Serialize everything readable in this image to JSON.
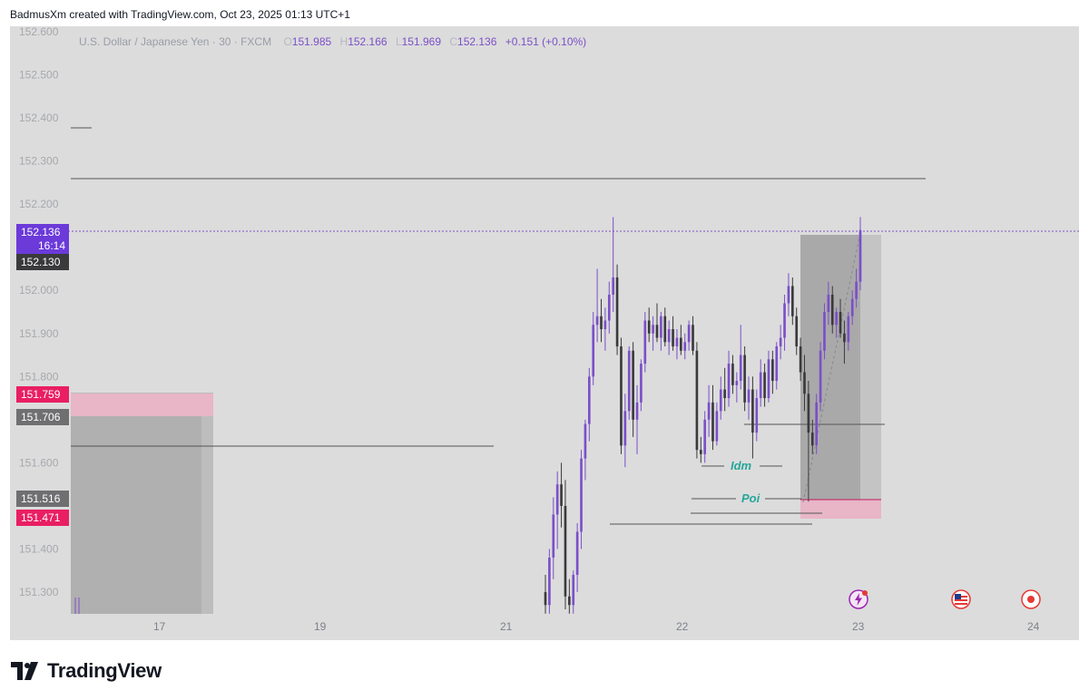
{
  "header": {
    "credit": "BadmusXm created with TradingView.com, Oct 23, 2025 01:13 UTC+1"
  },
  "legend": {
    "symbol": "U.S. Dollar / Japanese Yen · 30 · FXCM",
    "open_k": "O",
    "open_v": "151.985",
    "high_k": "H",
    "high_v": "152.166",
    "low_k": "L",
    "low_v": "151.969",
    "close_k": "C",
    "close_v": "152.136",
    "change": "+0.151 (+0.10%)"
  },
  "price_tags": {
    "last_price": "152.136",
    "countdown": "16:14",
    "tag_152130": "152.130",
    "tag_151759": "151.759",
    "tag_151706": "151.706",
    "tag_151516": "151.516",
    "tag_151471": "151.471"
  },
  "annotations": {
    "idm": "Idm",
    "poi": "Poi"
  },
  "icons": [
    "lightning-event-icon",
    "us-flag-event-icon",
    "record-event-icon"
  ],
  "colors": {
    "background": "#dcdcdc",
    "candle_bull": "#7b4fc9",
    "candle_bear": "#3a3a3c",
    "accent_purple": "#6b3ad9",
    "zone_pink": "#e8a6bd",
    "label_teal": "#26a69a"
  },
  "footer": {
    "brand": "TradingView"
  },
  "chart_data": {
    "type": "candlestick",
    "title": "U.S. Dollar / Japanese Yen · 30 · FXCM",
    "y_ticks": [
      "152.600",
      "152.500",
      "152.400",
      "152.300",
      "152.200",
      "152.000",
      "151.900",
      "151.800",
      "151.600",
      "151.400",
      "151.300"
    ],
    "ylim": [
      151.25,
      152.6
    ],
    "x_ticks": [
      "17",
      "19",
      "21",
      "22",
      "23",
      "24"
    ],
    "last_price": 152.136,
    "horizontal_levels": [
      152.26,
      151.637,
      151.455,
      151.685
    ],
    "candles": [
      [
        151.3,
        151.34,
        151.25,
        151.27
      ],
      [
        151.27,
        151.4,
        151.25,
        151.38
      ],
      [
        151.38,
        151.52,
        151.33,
        151.48
      ],
      [
        151.48,
        151.58,
        151.4,
        151.55
      ],
      [
        151.55,
        151.6,
        151.45,
        151.5
      ],
      [
        151.5,
        151.56,
        151.26,
        151.29
      ],
      [
        151.29,
        151.33,
        151.25,
        151.27
      ],
      [
        151.27,
        151.35,
        151.25,
        151.34
      ],
      [
        151.34,
        151.46,
        151.3,
        151.44
      ],
      [
        151.44,
        151.63,
        151.4,
        151.61
      ],
      [
        151.61,
        151.7,
        151.56,
        151.69
      ],
      [
        151.69,
        151.82,
        151.65,
        151.8
      ],
      [
        151.8,
        151.95,
        151.78,
        151.92
      ],
      [
        151.92,
        152.05,
        151.88,
        151.94
      ],
      [
        151.94,
        151.98,
        151.88,
        151.91
      ],
      [
        151.91,
        151.96,
        151.86,
        151.93
      ],
      [
        151.93,
        152.02,
        151.9,
        151.99
      ],
      [
        151.99,
        152.17,
        151.95,
        152.03
      ],
      [
        152.03,
        152.06,
        151.85,
        151.87
      ],
      [
        151.87,
        151.89,
        151.62,
        151.64
      ],
      [
        151.64,
        151.76,
        151.59,
        151.72
      ],
      [
        151.72,
        151.87,
        151.7,
        151.86
      ],
      [
        151.86,
        151.88,
        151.66,
        151.7
      ],
      [
        151.7,
        151.78,
        151.62,
        151.74
      ],
      [
        151.74,
        151.84,
        151.72,
        151.83
      ],
      [
        151.83,
        151.95,
        151.81,
        151.93
      ],
      [
        151.93,
        151.96,
        151.88,
        151.9
      ],
      [
        151.9,
        151.94,
        151.86,
        151.92
      ],
      [
        151.92,
        151.97,
        151.88,
        151.89
      ],
      [
        151.89,
        151.95,
        151.86,
        151.94
      ],
      [
        151.94,
        151.96,
        151.87,
        151.88
      ],
      [
        151.88,
        151.93,
        151.85,
        151.91
      ],
      [
        151.91,
        151.94,
        151.86,
        151.87
      ],
      [
        151.87,
        151.91,
        151.84,
        151.89
      ],
      [
        151.89,
        151.92,
        151.85,
        151.86
      ],
      [
        151.86,
        151.9,
        151.84,
        151.88
      ],
      [
        151.88,
        151.93,
        151.86,
        151.92
      ],
      [
        151.92,
        151.94,
        151.85,
        151.86
      ],
      [
        151.86,
        151.88,
        151.61,
        151.63
      ],
      [
        151.63,
        151.66,
        151.6,
        151.62
      ],
      [
        151.62,
        151.72,
        151.6,
        151.7
      ],
      [
        151.7,
        151.78,
        151.66,
        151.74
      ],
      [
        151.74,
        151.78,
        151.63,
        151.65
      ],
      [
        151.65,
        151.74,
        151.64,
        151.72
      ],
      [
        151.72,
        151.8,
        151.7,
        151.77
      ],
      [
        151.77,
        151.82,
        151.72,
        151.75
      ],
      [
        151.75,
        151.86,
        151.73,
        151.83
      ],
      [
        151.83,
        151.85,
        151.76,
        151.78
      ],
      [
        151.78,
        151.81,
        151.74,
        151.79
      ],
      [
        151.79,
        151.92,
        151.77,
        151.85
      ],
      [
        151.85,
        151.87,
        151.72,
        151.74
      ],
      [
        151.74,
        151.8,
        151.7,
        151.77
      ],
      [
        151.77,
        151.8,
        151.61,
        151.67
      ],
      [
        151.67,
        151.77,
        151.65,
        151.75
      ],
      [
        151.75,
        151.84,
        151.73,
        151.81
      ],
      [
        151.81,
        151.83,
        151.73,
        151.75
      ],
      [
        151.75,
        151.86,
        151.74,
        151.84
      ],
      [
        151.84,
        151.86,
        151.76,
        151.79
      ],
      [
        151.79,
        151.88,
        151.77,
        151.87
      ],
      [
        151.87,
        151.92,
        151.84,
        151.89
      ],
      [
        151.89,
        151.99,
        151.86,
        151.97
      ],
      [
        151.97,
        152.04,
        151.94,
        152.01
      ],
      [
        152.01,
        152.03,
        151.92,
        151.94
      ],
      [
        151.94,
        151.96,
        151.85,
        151.87
      ],
      [
        151.87,
        151.89,
        151.79,
        151.81
      ],
      [
        151.81,
        151.85,
        151.72,
        151.76
      ],
      [
        151.76,
        151.79,
        151.51,
        151.67
      ],
      [
        151.67,
        151.7,
        151.62,
        151.64
      ],
      [
        151.64,
        151.76,
        151.62,
        151.74
      ],
      [
        151.74,
        151.88,
        151.72,
        151.86
      ],
      [
        151.86,
        151.97,
        151.84,
        151.95
      ],
      [
        151.95,
        152.02,
        151.92,
        151.99
      ],
      [
        151.99,
        152.01,
        151.9,
        151.92
      ],
      [
        151.92,
        151.96,
        151.89,
        151.95
      ],
      [
        151.95,
        151.98,
        151.89,
        151.9
      ],
      [
        151.9,
        151.93,
        151.83,
        151.88
      ],
      [
        151.88,
        151.95,
        151.86,
        151.94
      ],
      [
        151.94,
        152.0,
        151.92,
        151.98
      ],
      [
        151.98,
        152.05,
        151.96,
        152.02
      ],
      [
        152.02,
        152.17,
        152.0,
        152.14
      ]
    ]
  }
}
